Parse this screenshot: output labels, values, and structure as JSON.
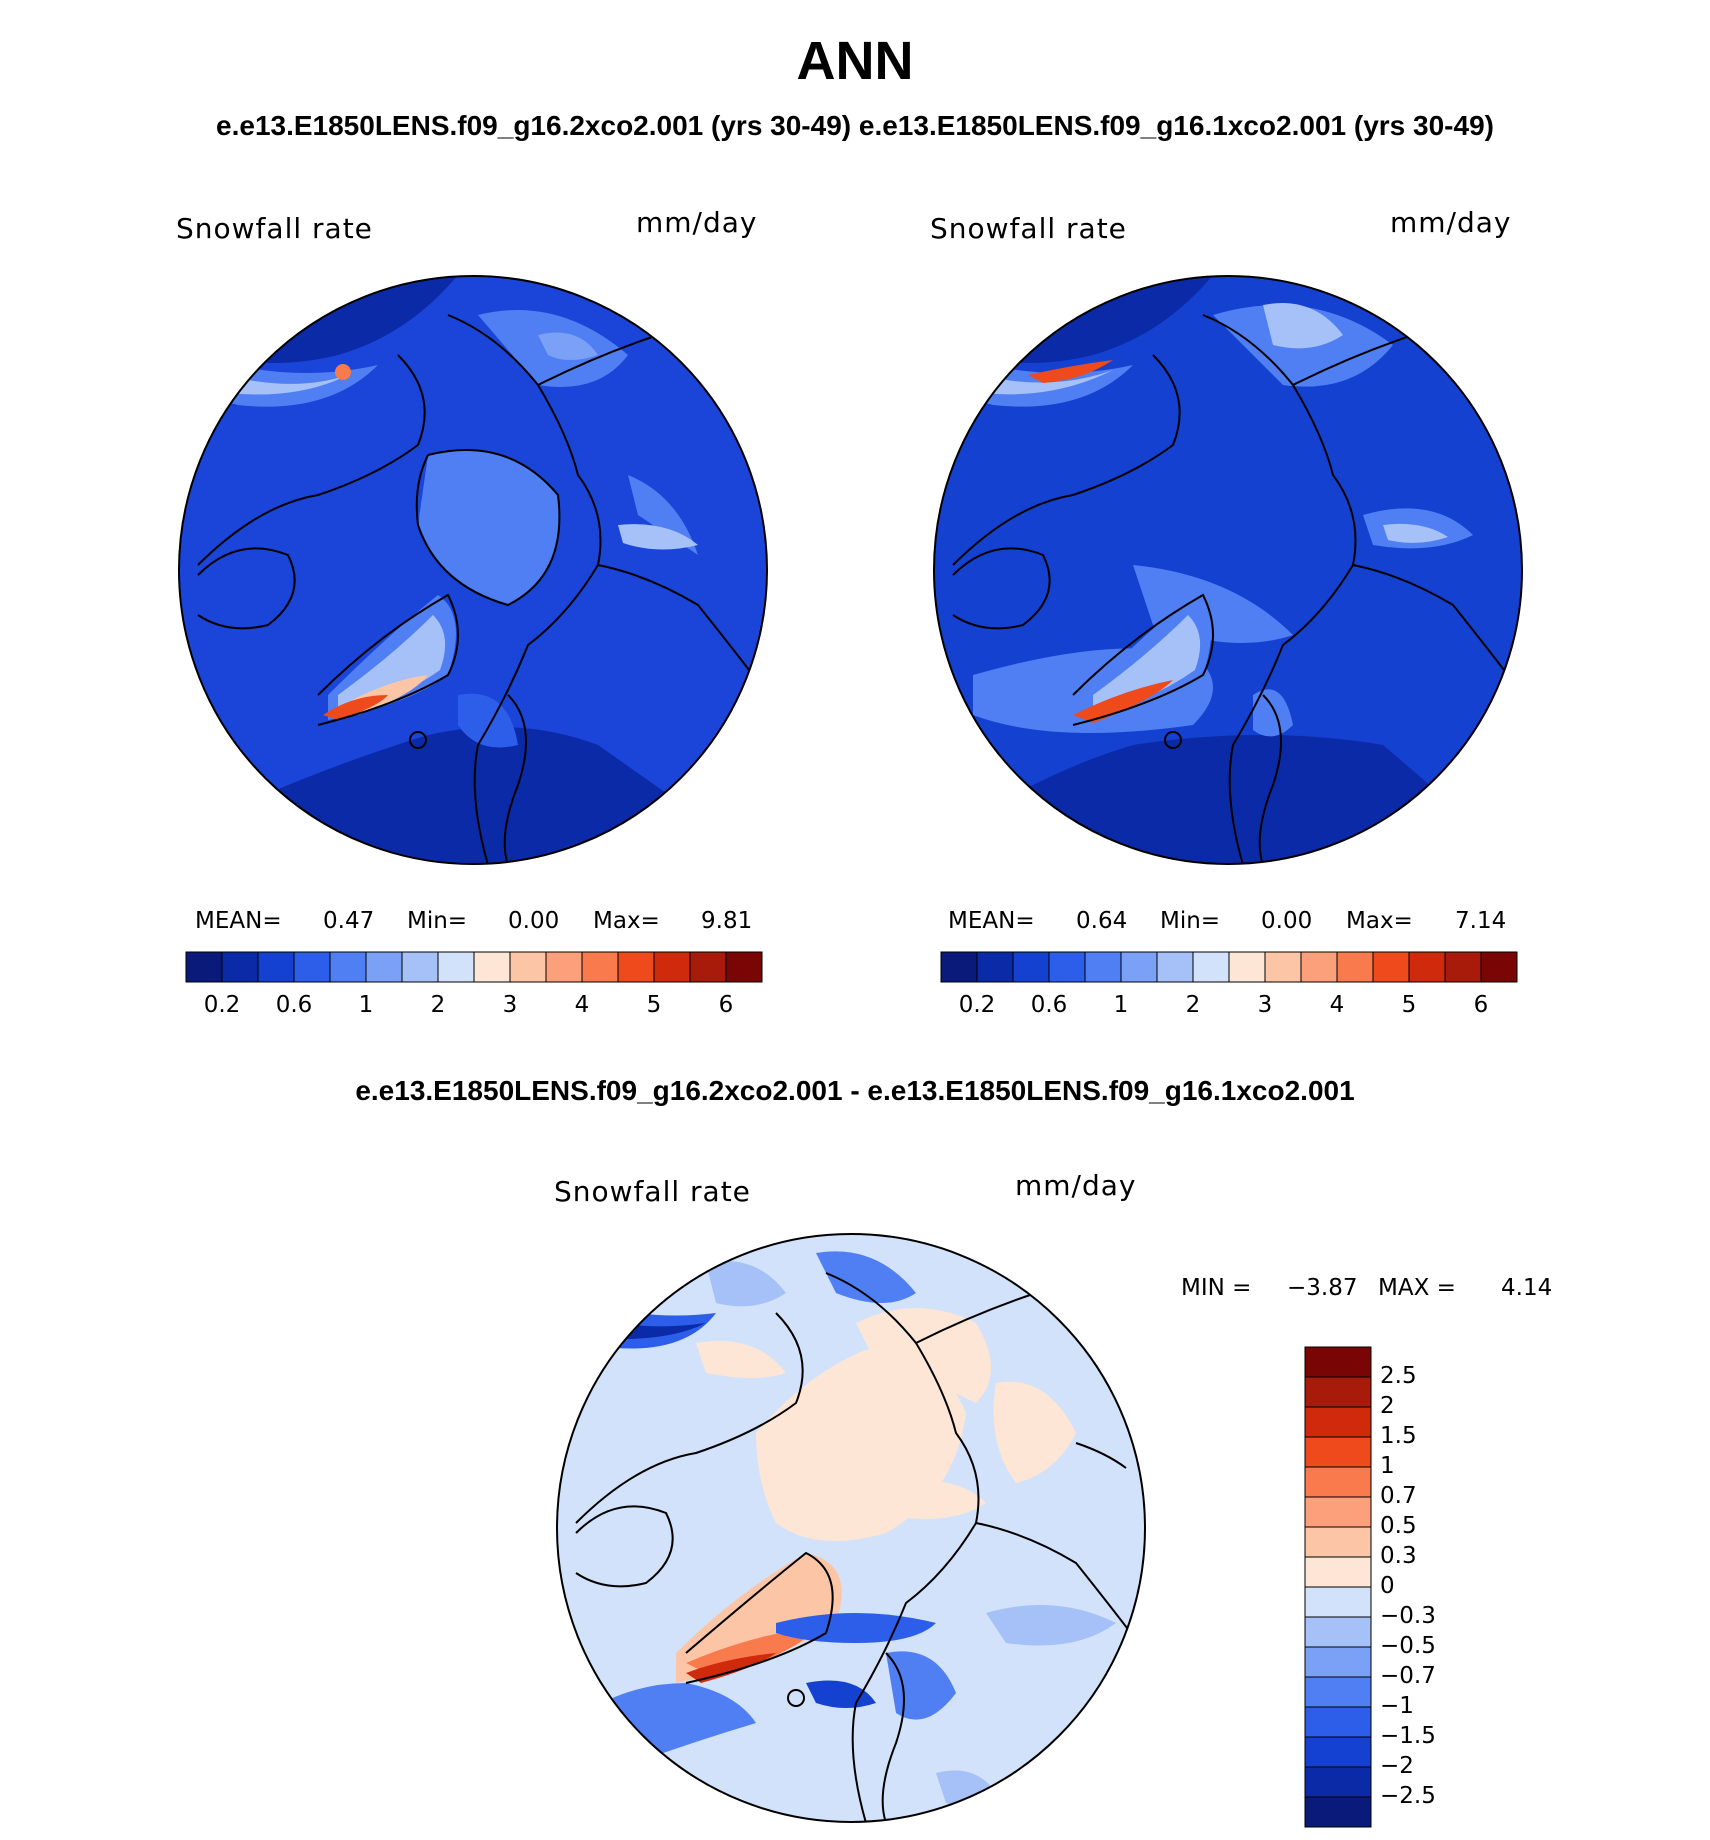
{
  "header": {
    "title": "ANN",
    "subtitle": "e.e13.E1850LENS.f09_g16.2xco2.001 (yrs 30-49) e.e13.E1850LENS.f09_g16.1xco2.001 (yrs 30-49)",
    "diff_title": "e.e13.E1850LENS.f09_g16.2xco2.001 - e.e13.E1850LENS.f09_g16.1xco2.001"
  },
  "panels": [
    {
      "variable": "Snowfall rate",
      "units": "mm/day",
      "stats": {
        "mean_label": "MEAN=",
        "mean": "0.47",
        "min_label": "Min=",
        "min": "0.00",
        "max_label": "Max=",
        "max": "9.81"
      }
    },
    {
      "variable": "Snowfall rate",
      "units": "mm/day",
      "stats": {
        "mean_label": "MEAN=",
        "mean": "0.64",
        "min_label": "Min=",
        "min": "0.00",
        "max_label": "Max=",
        "max": "7.14"
      }
    }
  ],
  "diff_panel": {
    "variable": "Snowfall rate",
    "units": "mm/day",
    "min_label": "MIN =",
    "min": "−3.87",
    "max_label": "MAX =",
    "max": "4.14"
  },
  "colorbar_top": {
    "colors": [
      "#0a1a7a",
      "#0b2aa8",
      "#1441d0",
      "#2d5eea",
      "#4f7ff2",
      "#7ba1f6",
      "#a6c0f8",
      "#d2e2fb",
      "#fde6d6",
      "#fcc6a6",
      "#fba07a",
      "#f97a4c",
      "#ee4a1c",
      "#d02a0c",
      "#a81a0a",
      "#7a0505"
    ],
    "labels": [
      "0.2",
      "0.6",
      "1",
      "2",
      "3",
      "4",
      "5",
      "6"
    ]
  },
  "colorbar_diff": {
    "colors": [
      "#7a0505",
      "#a81a0a",
      "#d02a0c",
      "#ee4a1c",
      "#f97a4c",
      "#fba07a",
      "#fcc6a6",
      "#fde6d6",
      "#d2e2fb",
      "#a6c0f8",
      "#7ba1f6",
      "#4f7ff2",
      "#2d5eea",
      "#1441d0",
      "#0b2aa8",
      "#0a1a7a"
    ],
    "labels": [
      "2.5",
      "2",
      "1.5",
      "1",
      "0.7",
      "0.5",
      "0.3",
      "0",
      "−0.3",
      "−0.5",
      "−0.7",
      "−1",
      "−1.5",
      "−2",
      "−2.5"
    ]
  }
}
